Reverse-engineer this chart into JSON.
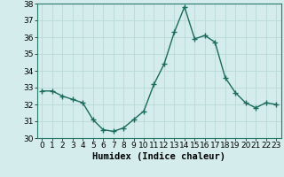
{
  "x": [
    0,
    1,
    2,
    3,
    4,
    5,
    6,
    7,
    8,
    9,
    10,
    11,
    12,
    13,
    14,
    15,
    16,
    17,
    18,
    19,
    20,
    21,
    22,
    23
  ],
  "y": [
    32.8,
    32.8,
    32.5,
    32.3,
    32.1,
    31.1,
    30.5,
    30.4,
    30.6,
    31.1,
    31.6,
    33.2,
    34.4,
    36.3,
    37.8,
    35.9,
    36.1,
    35.7,
    33.6,
    32.7,
    32.1,
    31.8,
    32.1,
    32.0
  ],
  "line_color": "#1a6b5a",
  "marker": "+",
  "marker_size": 4,
  "marker_linewidth": 1.0,
  "bg_color": "#d4edec",
  "grid_color": "#b8d8d6",
  "xlabel": "Humidex (Indice chaleur)",
  "xlabel_fontsize": 7.5,
  "ylim": [
    30,
    38
  ],
  "yticks": [
    30,
    31,
    32,
    33,
    34,
    35,
    36,
    37,
    38
  ],
  "xticks": [
    0,
    1,
    2,
    3,
    4,
    5,
    6,
    7,
    8,
    9,
    10,
    11,
    12,
    13,
    14,
    15,
    16,
    17,
    18,
    19,
    20,
    21,
    22,
    23
  ],
  "tick_fontsize": 6.5,
  "line_width": 1.0
}
